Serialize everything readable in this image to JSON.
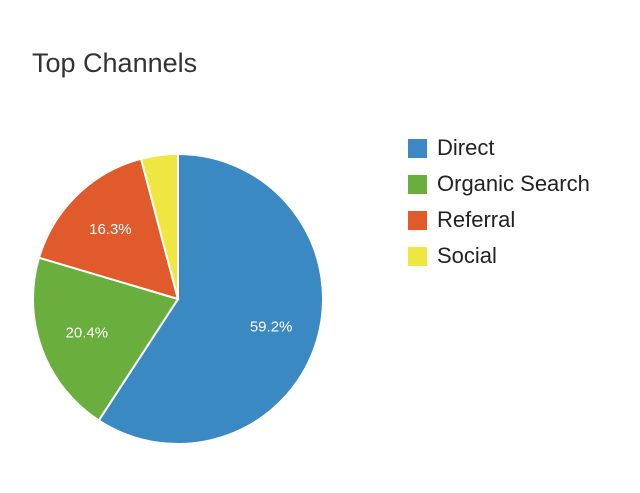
{
  "chart_data": {
    "type": "pie",
    "title": "Top Channels",
    "categories": [
      "Direct",
      "Organic Search",
      "Referral",
      "Social"
    ],
    "values": [
      59.2,
      20.4,
      16.3,
      4.1
    ],
    "labels": [
      "59.2%",
      "20.4%",
      "16.3%",
      ""
    ],
    "colors": [
      "#3a89c3",
      "#6aae3e",
      "#e15a2c",
      "#efe641"
    ],
    "start_angle_deg": 0,
    "direction": "clockwise",
    "legend_position": "right"
  },
  "title": "Top Channels",
  "legend": {
    "items": [
      {
        "label": "Direct",
        "color": "#3a89c3"
      },
      {
        "label": "Organic Search",
        "color": "#6aae3e"
      },
      {
        "label": "Referral",
        "color": "#e15a2c"
      },
      {
        "label": "Social",
        "color": "#efe641"
      }
    ]
  }
}
